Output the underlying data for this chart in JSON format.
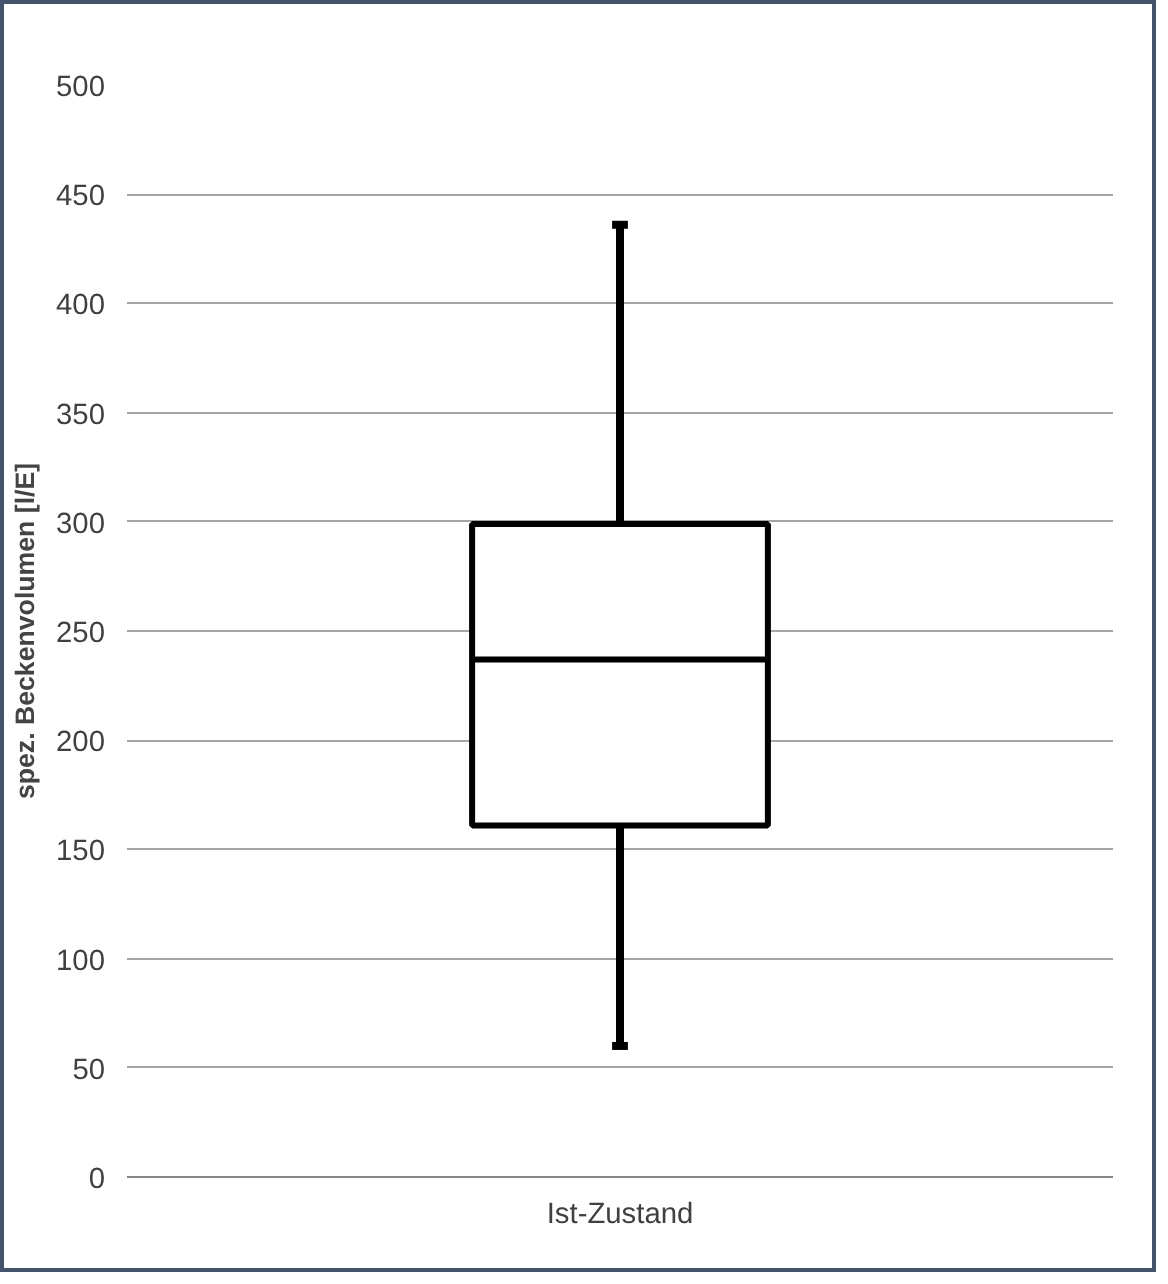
{
  "chart_data": {
    "type": "box",
    "ylabel": "spez. Beckenvolumen [l/E]",
    "categories": [
      "Ist-Zustand"
    ],
    "boxes": [
      {
        "low": 60,
        "q1": 161,
        "median": 237,
        "q3": 299,
        "high": 436
      }
    ],
    "ylim": [
      0,
      500
    ],
    "yticks": [
      0,
      50,
      100,
      150,
      200,
      250,
      300,
      350,
      400,
      450,
      500
    ],
    "grid": "y"
  }
}
